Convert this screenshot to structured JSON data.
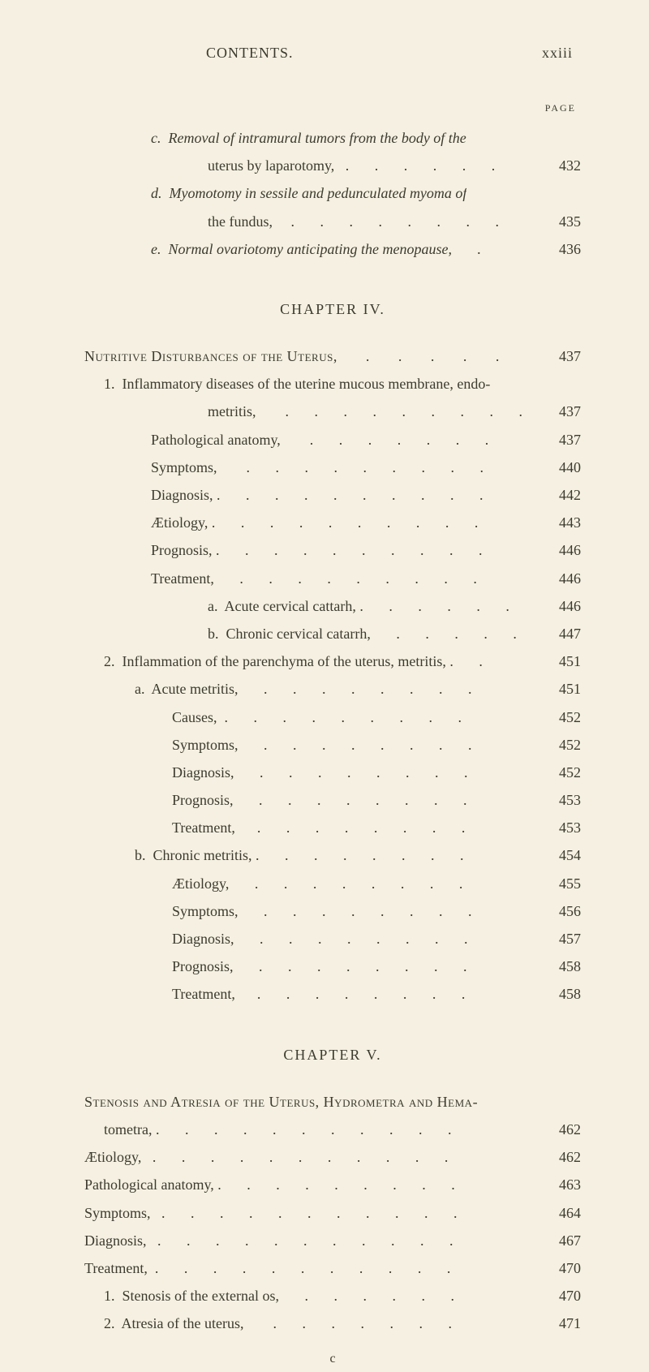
{
  "header": {
    "left": "CONTENTS.",
    "right": "xxiii"
  },
  "page_label": "PAGE",
  "sectionA": [
    {
      "cls": "ind0",
      "text": "c.  Removal of intramural tumors from the body of the",
      "page": ""
    },
    {
      "cls": "ind1",
      "text": "uterus by laparotomy,   .       .       .       .       .       .",
      "page": "432"
    },
    {
      "cls": "ind0",
      "text": "d.  Myomotomy in sessile and pedunculated myoma of",
      "page": ""
    },
    {
      "cls": "ind1",
      "text": "the fundus,     .       .       .       .       .       .       .       .",
      "page": "  435"
    },
    {
      "cls": "ind0",
      "text": "e.  Normal ovariotomy anticipating the menopause,       .",
      "page": "436"
    }
  ],
  "chapter4": "CHAPTER  IV.",
  "sectionB_title": {
    "cls": "noind",
    "text": "Nutritive Disturbances of the Uterus,       .       .       .       .       .",
    "page": "437"
  },
  "sectionB": [
    {
      "cls": "noind2",
      "text": "1.  Inflammatory diseases of the uterine mucous membrane, endo-",
      "page": ""
    },
    {
      "cls": "ind3",
      "text": "metritis,        .       .       .       .       .       .       .       .       .",
      "page": "437"
    },
    {
      "cls": "ind2",
      "text": "Pathological anatomy,        .       .       .       .       .       .       .",
      "page": "437"
    },
    {
      "cls": "ind2",
      "text": "Symptoms,        .       .       .       .       .       .       .       .       .",
      "page": "440"
    },
    {
      "cls": "ind2",
      "text": "Diagnosis, .       .       .       .       .       .       .       .       .       .",
      "page": "442"
    },
    {
      "cls": "ind2",
      "text": "Ætiology, .       .       .       .       .       .       .       .       .       .",
      "page": "443"
    },
    {
      "cls": "ind2",
      "text": "Prognosis, .       .       .       .       .       .       .       .       .       .",
      "page": "446"
    },
    {
      "cls": "ind2",
      "text": "Treatment,       .       .       .       .       .       .       .       .       .",
      "page": "446"
    },
    {
      "cls": "ind3",
      "text": "a.  Acute cervical cattarh, .       .       .       .       .       .",
      "page": "446"
    },
    {
      "cls": "ind3",
      "text": "b.  Chronic cervical catarrh,       .       .       .       .       .",
      "page": "447"
    },
    {
      "cls": "noind2",
      "text": "2.  Inflammation of the parenchyma of the uterus, metritis, .       .",
      "page": "451"
    },
    {
      "cls": "ind6",
      "text": "a.  Acute metritis,       .       .       .       .       .       .       .       .",
      "page": "451"
    },
    {
      "cls": "ind7",
      "text": "Causes,  .       .       .       .       .       .       .       .       .",
      "page": "452"
    },
    {
      "cls": "ind7",
      "text": "Symptoms,       .       .       .       .       .       .       .       .",
      "page": "452"
    },
    {
      "cls": "ind7",
      "text": "Diagnosis,       .       .       .       .       .       .       .       .",
      "page": "452"
    },
    {
      "cls": "ind7",
      "text": "Prognosis,       .       .       .       .       .       .       .       .",
      "page": "453"
    },
    {
      "cls": "ind7",
      "text": "Treatment,      .       .       .       .       .       .       .       .",
      "page": "453"
    },
    {
      "cls": "ind6",
      "text": "b.  Chronic metritis, .       .       .       .       .       .       .       .",
      "page": "454"
    },
    {
      "cls": "ind7",
      "text": "Ætiology,       .       .       .       .       .       .       .       .",
      "page": "455"
    },
    {
      "cls": "ind7",
      "text": "Symptoms,       .       .       .       .       .       .       .       .",
      "page": "456"
    },
    {
      "cls": "ind7",
      "text": "Diagnosis,       .       .       .       .       .       .       .       .",
      "page": "457"
    },
    {
      "cls": "ind7",
      "text": "Prognosis,       .       .       .       .       .       .       .       .",
      "page": "458"
    },
    {
      "cls": "ind7",
      "text": "Treatment,      .       .       .       .       .       .       .       .",
      "page": "458"
    }
  ],
  "chapter5": "CHAPTER  V.",
  "sectionC_title1": "Stenosis and Atresia of the Uterus, Hydrometra and Hema-",
  "sectionC": [
    {
      "cls": "noind2",
      "text": "tometra, .       .       .       .       .       .       .       .       .       .       .",
      "page": "462"
    },
    {
      "cls": "noind",
      "text": "Ætiology,   .       .       .       .       .       .       .       .       .       .       .",
      "page": "462"
    },
    {
      "cls": "noind",
      "text": "Pathological anatomy, .       .       .       .       .       .       .       .       .",
      "page": "463"
    },
    {
      "cls": "noind",
      "text": "Symptoms,   .       .       .       .       .       .       .       .       .       .       .",
      "page": "464"
    },
    {
      "cls": "noind",
      "text": "Diagnosis,   .       .       .       .       .       .       .       .       .       .       .",
      "page": "467"
    },
    {
      "cls": "noind",
      "text": "Treatment,  .       .       .       .       .       .       .       .       .       .       .",
      "page": "470"
    },
    {
      "cls": "noind2",
      "text": "1.  Stenosis of the external os,       .       .       .       .       .       .",
      "page": "470"
    },
    {
      "cls": "noind2",
      "text": "2.  Atresia of the uterus,        .       .       .       .       .       .       .",
      "page": "471"
    }
  ],
  "footer": "c",
  "style": {
    "background": "#f5f0e2",
    "text": "#3c3b2e",
    "fontsize_body": 18,
    "fontsize_pagelabel": 12,
    "fontfamily": "Times New Roman"
  }
}
